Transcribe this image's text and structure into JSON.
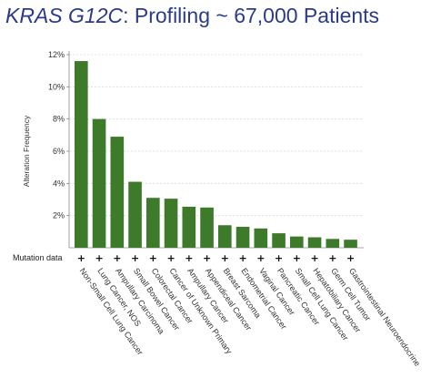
{
  "header": {
    "title_gene": "KRAS G12C",
    "title_rest": ": Profiling ~ 67,000 Patients"
  },
  "chart_data": {
    "type": "bar",
    "title": "KRAS G12C: Profiling ~ 67,000 Patients",
    "ylabel": "Alteration Frequency",
    "xlabel": "",
    "ylim": [
      0,
      12
    ],
    "yticks": [
      "2%",
      "4%",
      "6%",
      "8%",
      "10%",
      "12%"
    ],
    "grid": true,
    "bar_color": "#3d7a2a",
    "categories": [
      "Non-Small Cell Lung Cancer",
      "Lung Cancer, NOS",
      "Ampullary Carcinoma",
      "Small Bowel Cancer",
      "Colorectal Cancer",
      "Cancer of Unknown Primary",
      "Ampullary Cancer",
      "Appendiceal Cancer",
      "Breast Sarcoma",
      "Endometrial Cancer",
      "Vaginal Cancer",
      "Pancreatic Cancer",
      "Small Cell Lung Cancer",
      "Hepatobiliary Cancer",
      "Germ Cell Tumor",
      "Gastrointestinal Neuroendocrine"
    ],
    "values": [
      11.6,
      8.0,
      6.9,
      4.1,
      3.1,
      3.05,
      2.55,
      2.5,
      1.4,
      1.3,
      1.2,
      0.9,
      0.7,
      0.65,
      0.55,
      0.5
    ],
    "mutation_row": {
      "label": "Mutation data",
      "marker": "+"
    }
  }
}
